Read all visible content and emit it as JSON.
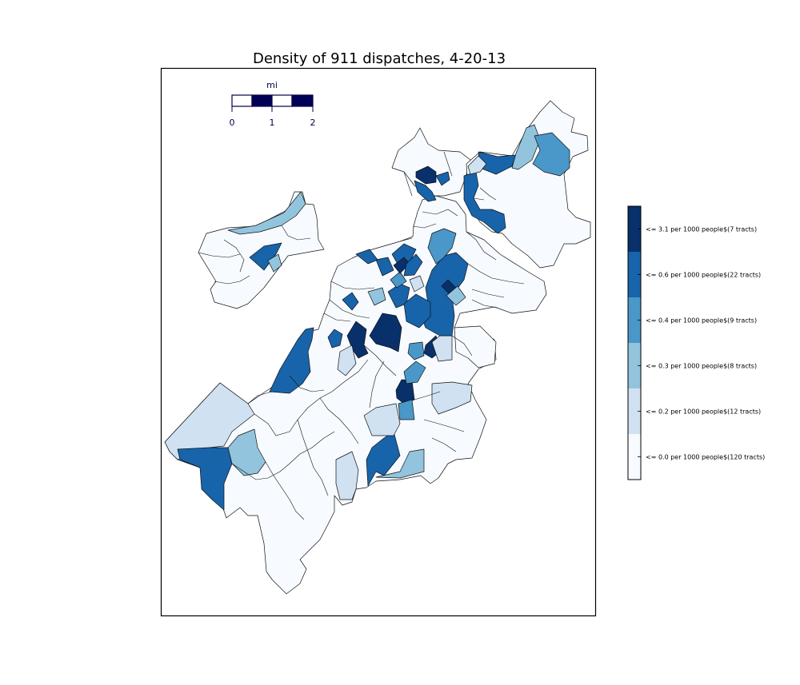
{
  "title": "Density of 911 dispatches, 4-20-13",
  "scale_bar": {
    "unit_label": "mi",
    "tick_labels": [
      "0",
      "1",
      "2"
    ],
    "dark_color": "#000055"
  },
  "colorbar": {
    "bins": [
      {
        "label": "<= 0.0 per 1000 people$(120 tracts)",
        "color": "#f7fbff"
      },
      {
        "label": "<= 0.2 per 1000 people$(12 tracts)",
        "color": "#d0e1f2"
      },
      {
        "label": "<= 0.3 per 1000 people$(8 tracts)",
        "color": "#93c4de"
      },
      {
        "label": "<= 0.4 per 1000 people$(9 tracts)",
        "color": "#4a97c9"
      },
      {
        "label": "<= 0.6 per 1000 people$(22 tracts)",
        "color": "#1764ab"
      },
      {
        "label": "<= 3.1 per 1000 people$(7 tracts)",
        "color": "#08306b"
      }
    ]
  },
  "chart_data": {
    "type": "choropleth",
    "title": "Density of 911 dispatches, 4-20-13",
    "color_scale": "Blues",
    "classes": [
      {
        "max": 0.0,
        "unit": "per 1000 people",
        "tracts": 120
      },
      {
        "max": 0.2,
        "unit": "per 1000 people",
        "tracts": 12
      },
      {
        "max": 0.3,
        "unit": "per 1000 people",
        "tracts": 8
      },
      {
        "max": 0.4,
        "unit": "per 1000 people",
        "tracts": 9
      },
      {
        "max": 0.6,
        "unit": "per 1000 people",
        "tracts": 22
      },
      {
        "max": 3.1,
        "unit": "per 1000 people",
        "tracts": 7
      }
    ],
    "scale_bar_miles": [
      0,
      1,
      2
    ]
  }
}
